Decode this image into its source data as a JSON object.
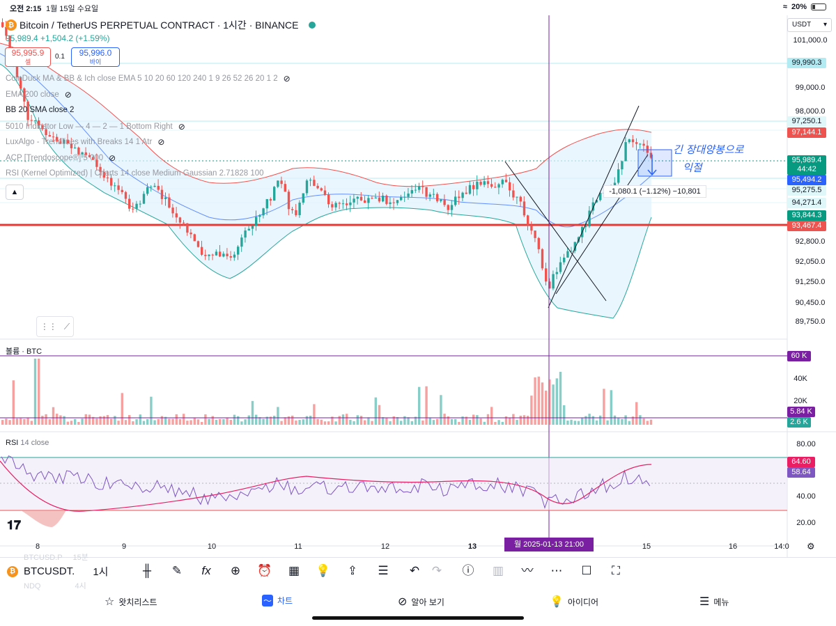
{
  "status_bar": {
    "time": "오전 2:15",
    "date": "1월 15일 수요일",
    "wifi_icon": "wifi-icon",
    "battery": "20%"
  },
  "header": {
    "symbol_title": "Bitcoin / TetherUS PERPETUAL CONTRACT · 1시간 · BINANCE",
    "price_change": "95,989.4 +1,504.2 (+1.59%)",
    "sell_price": "95,995.9",
    "sell_label": "셀",
    "spread": "0.1",
    "buy_price": "95,996.0",
    "buy_label": "바이",
    "currency": "USDT"
  },
  "indicators": [
    {
      "label": "CoinDuck MA & BB & Ich close EMA 5 10 20 60 120 240 1 9 26 52 26 20 1 2",
      "hidden": true
    },
    {
      "label": "EMA 200 close",
      "hidden": true
    },
    {
      "label": "BB 20 SMA close 2",
      "hidden": false
    },
    {
      "label": "5010 Indicator Low — 4 — 2 — 1 Bottom Right",
      "hidden": true
    },
    {
      "label": "LuxAlgo - Trendlines with Breaks 14 1 Atr",
      "hidden": true
    },
    {
      "label": "ACP [Trendoscope®] 5 000",
      "hidden": true
    },
    {
      "label": "RSI (Kernel Optimized) | Charts 14 close Medium Gaussian 2.71828 100",
      "hidden": false
    }
  ],
  "price_scale": [
    "101,000.0",
    "99,000.0",
    "98,000.0",
    "92,800.0",
    "92,050.0",
    "91,250.0",
    "90,450.0",
    "89,750.0"
  ],
  "price_tags": [
    {
      "value": "99,990.3",
      "color": "#b2ebf2",
      "text": "#131722"
    },
    {
      "value": "97,250.1",
      "color": "#e0f7fa",
      "text": "#131722"
    },
    {
      "value": "97,144.1",
      "color": "#ef5350",
      "text": "#ffffff"
    },
    {
      "value": "95,989.4",
      "color": "#089981",
      "text": "#ffffff"
    },
    {
      "value": "44:42",
      "color": "#089981",
      "text": "#ffffff"
    },
    {
      "value": "95,494.2",
      "color": "#2962ff",
      "text": "#ffffff"
    },
    {
      "value": "95,275.5",
      "color": "#e0f7fa",
      "text": "#131722"
    },
    {
      "value": "94,271.4",
      "color": "#e0f7fa",
      "text": "#131722"
    },
    {
      "value": "93,844.3",
      "color": "#089981",
      "text": "#ffffff"
    },
    {
      "value": "93,467.4",
      "color": "#ef5350",
      "text": "#ffffff"
    }
  ],
  "volume_pane": {
    "label": "볼륨 · BTC",
    "scale": [
      "60 K",
      "40K",
      "20K"
    ],
    "tags": [
      {
        "value": "5.84 K",
        "color": "#7a1fa2"
      },
      {
        "value": "2.6 K",
        "color": "#26a69a"
      }
    ]
  },
  "rsi_pane": {
    "label": "RSI",
    "params": "14 close",
    "scale": [
      "80.00",
      "40.00",
      "20.00"
    ],
    "tags": [
      {
        "value": "64.60",
        "color": "#e91e63"
      },
      {
        "value": "58.64",
        "color": "#7e57c2"
      }
    ]
  },
  "time_axis": [
    "8",
    "9",
    "10",
    "11",
    "12",
    "13",
    "15",
    "16",
    "14:0"
  ],
  "crosshair_date": "월 2025-01-13   21:00",
  "measure_label": "-1,080.1 (−1.12%) −10,801",
  "annotation": {
    "line1": "긴 장대양봉으로",
    "line2": "익절"
  },
  "toolbar": {
    "symbol": "BTCUSDT.",
    "interval": "1시",
    "ghost_symbol": "BTCUSD.P",
    "ghost_interval": "15분",
    "ghost_symbol2": "NDQ",
    "ghost_interval2": "4시"
  },
  "tabs": [
    {
      "label": "왓치리스트",
      "icon": "star-icon",
      "active": false
    },
    {
      "label": "차트",
      "icon": "chart-icon",
      "active": true
    },
    {
      "label": "알아 보기",
      "icon": "compass-icon",
      "active": false
    },
    {
      "label": "아이디어",
      "icon": "lightbulb-icon",
      "active": false
    },
    {
      "label": "메뉴",
      "icon": "menu-icon",
      "active": false
    }
  ],
  "colors": {
    "up": "#26a69a",
    "down": "#ef5350",
    "support_line": "#e53935",
    "crosshair": "#7a1fa2",
    "bb_band": "#b2ebf2"
  }
}
